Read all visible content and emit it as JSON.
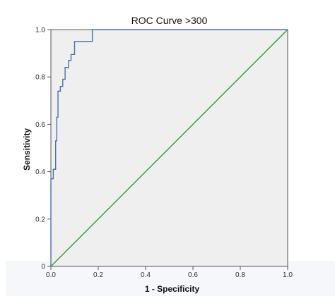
{
  "chart_data": {
    "type": "line",
    "title": "ROC Curve  >300",
    "xlabel": "1 - Specificity",
    "ylabel": "Sensitivity",
    "xlim": [
      0,
      1
    ],
    "ylim": [
      0,
      1
    ],
    "x_ticks": [
      "0.0",
      "0.2",
      "0.4",
      "0.6",
      "0.8",
      "1.0"
    ],
    "y_ticks": [
      "0",
      "0.2",
      "0.4",
      "0.6",
      "0.8",
      "1.0"
    ],
    "grid": false,
    "legend": "none",
    "series": [
      {
        "color": "#4a6fb3",
        "points": [
          [
            0.0,
            0.0
          ],
          [
            0.0,
            0.37
          ],
          [
            0.01,
            0.37
          ],
          [
            0.01,
            0.41
          ],
          [
            0.02,
            0.41
          ],
          [
            0.02,
            0.53
          ],
          [
            0.025,
            0.53
          ],
          [
            0.025,
            0.63
          ],
          [
            0.03,
            0.63
          ],
          [
            0.03,
            0.74
          ],
          [
            0.04,
            0.74
          ],
          [
            0.04,
            0.76
          ],
          [
            0.05,
            0.76
          ],
          [
            0.05,
            0.79
          ],
          [
            0.06,
            0.79
          ],
          [
            0.06,
            0.84
          ],
          [
            0.075,
            0.84
          ],
          [
            0.075,
            0.87
          ],
          [
            0.085,
            0.87
          ],
          [
            0.085,
            0.895
          ],
          [
            0.1,
            0.895
          ],
          [
            0.1,
            0.95
          ],
          [
            0.175,
            0.95
          ],
          [
            0.175,
            1.0
          ],
          [
            1.0,
            1.0
          ]
        ]
      },
      {
        "color": "#2ca02c",
        "points": [
          [
            0,
            0
          ],
          [
            1,
            1
          ]
        ]
      }
    ],
    "colors": {
      "plot_background": "#efefef",
      "frame": "#555555"
    }
  }
}
